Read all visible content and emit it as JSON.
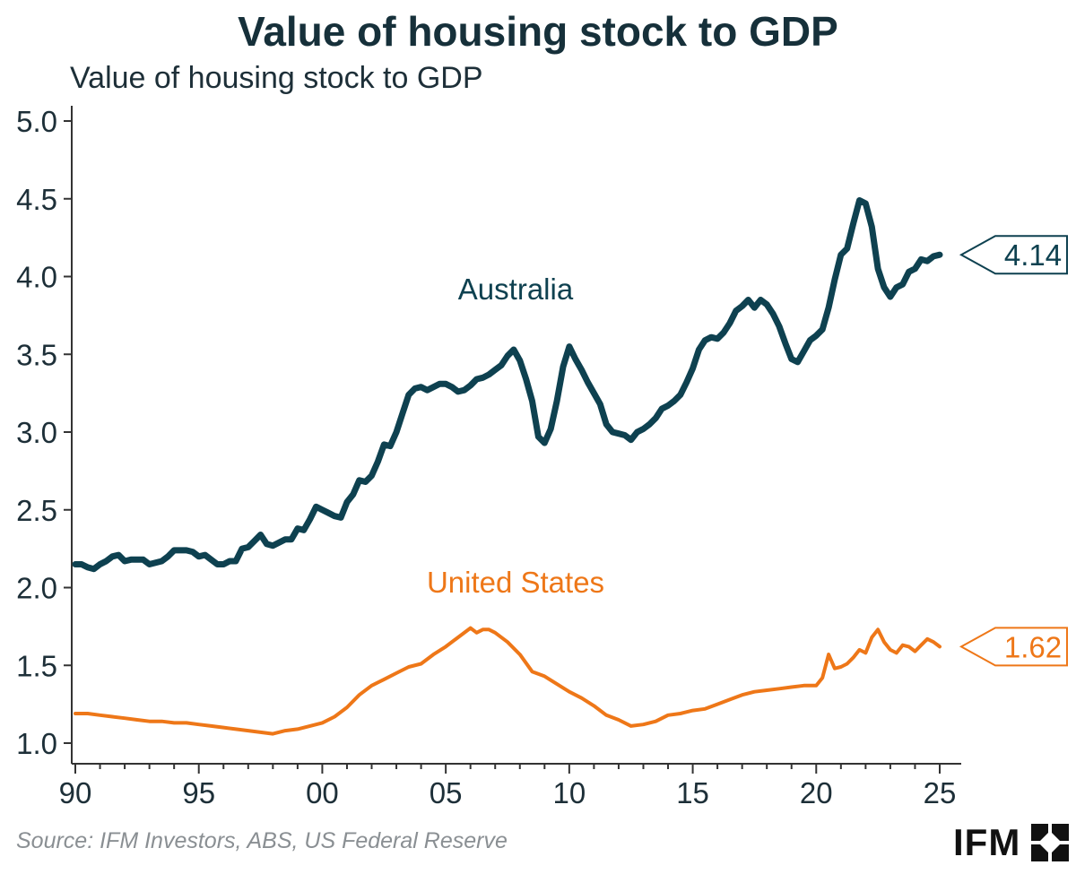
{
  "title": "Value of housing stock to GDP",
  "source": "Source: IFM Investors, ABS, US Federal Reserve",
  "logo": {
    "text": "IFM",
    "icon": "ifm-logo-mark-icon"
  },
  "colors": {
    "australia": "#0e4150",
    "united_states": "#ee7718",
    "axis": "#333333"
  },
  "chart_data": {
    "type": "line",
    "title": "Value of housing stock to GDP",
    "ylabel": "Value of housing stock to GDP",
    "xlabel": "",
    "xlim": [
      1990,
      2025.8
    ],
    "ylim": [
      0.95,
      5.05
    ],
    "x_ticks": [
      1990,
      1995,
      2000,
      2005,
      2010,
      2015,
      2020,
      2025
    ],
    "x_tick_labels": [
      "90",
      "95",
      "00",
      "05",
      "10",
      "15",
      "20",
      "25"
    ],
    "y_ticks": [
      1.0,
      1.5,
      2.0,
      2.5,
      3.0,
      3.5,
      4.0,
      4.5,
      5.0
    ],
    "y_tick_labels": [
      "1.0",
      "1.5",
      "2.0",
      "2.5",
      "3.0",
      "3.5",
      "4.0",
      "4.5",
      "5.0"
    ],
    "grid": false,
    "series": [
      {
        "name": "Australia",
        "color": "#0e4150",
        "end_label": "4.14",
        "points": [
          [
            1990.0,
            2.15
          ],
          [
            1990.25,
            2.15
          ],
          [
            1990.5,
            2.13
          ],
          [
            1990.75,
            2.12
          ],
          [
            1991.0,
            2.15
          ],
          [
            1991.25,
            2.17
          ],
          [
            1991.5,
            2.2
          ],
          [
            1991.75,
            2.21
          ],
          [
            1992.0,
            2.17
          ],
          [
            1992.25,
            2.18
          ],
          [
            1992.5,
            2.18
          ],
          [
            1992.75,
            2.18
          ],
          [
            1993.0,
            2.15
          ],
          [
            1993.25,
            2.16
          ],
          [
            1993.5,
            2.17
          ],
          [
            1993.75,
            2.2
          ],
          [
            1994.0,
            2.24
          ],
          [
            1994.25,
            2.24
          ],
          [
            1994.5,
            2.24
          ],
          [
            1994.75,
            2.23
          ],
          [
            1995.0,
            2.2
          ],
          [
            1995.25,
            2.21
          ],
          [
            1995.5,
            2.18
          ],
          [
            1995.75,
            2.15
          ],
          [
            1996.0,
            2.15
          ],
          [
            1996.25,
            2.17
          ],
          [
            1996.5,
            2.17
          ],
          [
            1996.75,
            2.25
          ],
          [
            1997.0,
            2.26
          ],
          [
            1997.25,
            2.3
          ],
          [
            1997.5,
            2.34
          ],
          [
            1997.75,
            2.28
          ],
          [
            1998.0,
            2.27
          ],
          [
            1998.25,
            2.29
          ],
          [
            1998.5,
            2.31
          ],
          [
            1998.75,
            2.31
          ],
          [
            1999.0,
            2.38
          ],
          [
            1999.25,
            2.37
          ],
          [
            1999.5,
            2.44
          ],
          [
            1999.75,
            2.52
          ],
          [
            2000.0,
            2.5
          ],
          [
            2000.25,
            2.48
          ],
          [
            2000.5,
            2.46
          ],
          [
            2000.75,
            2.45
          ],
          [
            2001.0,
            2.55
          ],
          [
            2001.25,
            2.6
          ],
          [
            2001.5,
            2.69
          ],
          [
            2001.75,
            2.68
          ],
          [
            2002.0,
            2.72
          ],
          [
            2002.25,
            2.81
          ],
          [
            2002.5,
            2.92
          ],
          [
            2002.75,
            2.91
          ],
          [
            2003.0,
            3.0
          ],
          [
            2003.25,
            3.12
          ],
          [
            2003.5,
            3.24
          ],
          [
            2003.75,
            3.28
          ],
          [
            2004.0,
            3.29
          ],
          [
            2004.25,
            3.27
          ],
          [
            2004.5,
            3.29
          ],
          [
            2004.75,
            3.31
          ],
          [
            2005.0,
            3.31
          ],
          [
            2005.25,
            3.29
          ],
          [
            2005.5,
            3.26
          ],
          [
            2005.75,
            3.27
          ],
          [
            2006.0,
            3.3
          ],
          [
            2006.25,
            3.34
          ],
          [
            2006.5,
            3.35
          ],
          [
            2006.75,
            3.37
          ],
          [
            2007.0,
            3.4
          ],
          [
            2007.25,
            3.43
          ],
          [
            2007.5,
            3.49
          ],
          [
            2007.75,
            3.53
          ],
          [
            2008.0,
            3.46
          ],
          [
            2008.25,
            3.34
          ],
          [
            2008.5,
            3.2
          ],
          [
            2008.75,
            2.97
          ],
          [
            2009.0,
            2.93
          ],
          [
            2009.25,
            3.02
          ],
          [
            2009.5,
            3.2
          ],
          [
            2009.75,
            3.42
          ],
          [
            2010.0,
            3.55
          ],
          [
            2010.25,
            3.47
          ],
          [
            2010.5,
            3.4
          ],
          [
            2010.75,
            3.32
          ],
          [
            2011.0,
            3.25
          ],
          [
            2011.25,
            3.18
          ],
          [
            2011.5,
            3.05
          ],
          [
            2011.75,
            3.0
          ],
          [
            2012.0,
            2.99
          ],
          [
            2012.25,
            2.98
          ],
          [
            2012.5,
            2.95
          ],
          [
            2012.75,
            3.0
          ],
          [
            2013.0,
            3.02
          ],
          [
            2013.25,
            3.05
          ],
          [
            2013.5,
            3.09
          ],
          [
            2013.75,
            3.15
          ],
          [
            2014.0,
            3.17
          ],
          [
            2014.25,
            3.2
          ],
          [
            2014.5,
            3.24
          ],
          [
            2014.75,
            3.32
          ],
          [
            2015.0,
            3.41
          ],
          [
            2015.25,
            3.53
          ],
          [
            2015.5,
            3.59
          ],
          [
            2015.75,
            3.61
          ],
          [
            2016.0,
            3.6
          ],
          [
            2016.25,
            3.64
          ],
          [
            2016.5,
            3.7
          ],
          [
            2016.75,
            3.78
          ],
          [
            2017.0,
            3.81
          ],
          [
            2017.25,
            3.85
          ],
          [
            2017.5,
            3.8
          ],
          [
            2017.75,
            3.85
          ],
          [
            2018.0,
            3.82
          ],
          [
            2018.25,
            3.76
          ],
          [
            2018.5,
            3.68
          ],
          [
            2018.75,
            3.57
          ],
          [
            2019.0,
            3.47
          ],
          [
            2019.25,
            3.45
          ],
          [
            2019.5,
            3.52
          ],
          [
            2019.75,
            3.59
          ],
          [
            2020.0,
            3.62
          ],
          [
            2020.25,
            3.66
          ],
          [
            2020.5,
            3.8
          ],
          [
            2020.75,
            3.98
          ],
          [
            2021.0,
            4.14
          ],
          [
            2021.25,
            4.18
          ],
          [
            2021.5,
            4.34
          ],
          [
            2021.75,
            4.49
          ],
          [
            2022.0,
            4.47
          ],
          [
            2022.25,
            4.32
          ],
          [
            2022.5,
            4.05
          ],
          [
            2022.75,
            3.93
          ],
          [
            2023.0,
            3.87
          ],
          [
            2023.25,
            3.93
          ],
          [
            2023.5,
            3.95
          ],
          [
            2023.75,
            4.03
          ],
          [
            2024.0,
            4.05
          ],
          [
            2024.25,
            4.11
          ],
          [
            2024.5,
            4.1
          ],
          [
            2024.75,
            4.13
          ],
          [
            2025.0,
            4.14
          ]
        ]
      },
      {
        "name": "United States",
        "color": "#ee7718",
        "end_label": "1.62",
        "points": [
          [
            1990.0,
            1.19
          ],
          [
            1990.5,
            1.19
          ],
          [
            1991.0,
            1.18
          ],
          [
            1991.5,
            1.17
          ],
          [
            1992.0,
            1.16
          ],
          [
            1992.5,
            1.15
          ],
          [
            1993.0,
            1.14
          ],
          [
            1993.5,
            1.14
          ],
          [
            1994.0,
            1.13
          ],
          [
            1994.5,
            1.13
          ],
          [
            1995.0,
            1.12
          ],
          [
            1995.5,
            1.11
          ],
          [
            1996.0,
            1.1
          ],
          [
            1996.5,
            1.09
          ],
          [
            1997.0,
            1.08
          ],
          [
            1997.5,
            1.07
          ],
          [
            1998.0,
            1.06
          ],
          [
            1998.5,
            1.08
          ],
          [
            1999.0,
            1.09
          ],
          [
            1999.5,
            1.11
          ],
          [
            2000.0,
            1.13
          ],
          [
            2000.5,
            1.17
          ],
          [
            2001.0,
            1.23
          ],
          [
            2001.5,
            1.31
          ],
          [
            2002.0,
            1.37
          ],
          [
            2002.5,
            1.41
          ],
          [
            2003.0,
            1.45
          ],
          [
            2003.5,
            1.49
          ],
          [
            2004.0,
            1.51
          ],
          [
            2004.5,
            1.57
          ],
          [
            2005.0,
            1.62
          ],
          [
            2005.5,
            1.68
          ],
          [
            2006.0,
            1.74
          ],
          [
            2006.25,
            1.71
          ],
          [
            2006.5,
            1.73
          ],
          [
            2006.75,
            1.73
          ],
          [
            2007.0,
            1.71
          ],
          [
            2007.5,
            1.65
          ],
          [
            2008.0,
            1.57
          ],
          [
            2008.5,
            1.46
          ],
          [
            2009.0,
            1.43
          ],
          [
            2009.5,
            1.38
          ],
          [
            2010.0,
            1.33
          ],
          [
            2010.5,
            1.29
          ],
          [
            2011.0,
            1.24
          ],
          [
            2011.5,
            1.18
          ],
          [
            2012.0,
            1.15
          ],
          [
            2012.5,
            1.11
          ],
          [
            2013.0,
            1.12
          ],
          [
            2013.5,
            1.14
          ],
          [
            2014.0,
            1.18
          ],
          [
            2014.5,
            1.19
          ],
          [
            2015.0,
            1.21
          ],
          [
            2015.5,
            1.22
          ],
          [
            2016.0,
            1.25
          ],
          [
            2016.5,
            1.28
          ],
          [
            2017.0,
            1.31
          ],
          [
            2017.5,
            1.33
          ],
          [
            2018.0,
            1.34
          ],
          [
            2018.5,
            1.35
          ],
          [
            2019.0,
            1.36
          ],
          [
            2019.5,
            1.37
          ],
          [
            2020.0,
            1.37
          ],
          [
            2020.25,
            1.42
          ],
          [
            2020.5,
            1.57
          ],
          [
            2020.75,
            1.48
          ],
          [
            2021.0,
            1.49
          ],
          [
            2021.25,
            1.51
          ],
          [
            2021.5,
            1.55
          ],
          [
            2021.75,
            1.6
          ],
          [
            2022.0,
            1.58
          ],
          [
            2022.25,
            1.68
          ],
          [
            2022.5,
            1.73
          ],
          [
            2022.75,
            1.65
          ],
          [
            2023.0,
            1.6
          ],
          [
            2023.25,
            1.58
          ],
          [
            2023.5,
            1.63
          ],
          [
            2023.75,
            1.62
          ],
          [
            2024.0,
            1.59
          ],
          [
            2024.25,
            1.63
          ],
          [
            2024.5,
            1.67
          ],
          [
            2024.75,
            1.65
          ],
          [
            2025.0,
            1.62
          ]
        ]
      }
    ]
  }
}
